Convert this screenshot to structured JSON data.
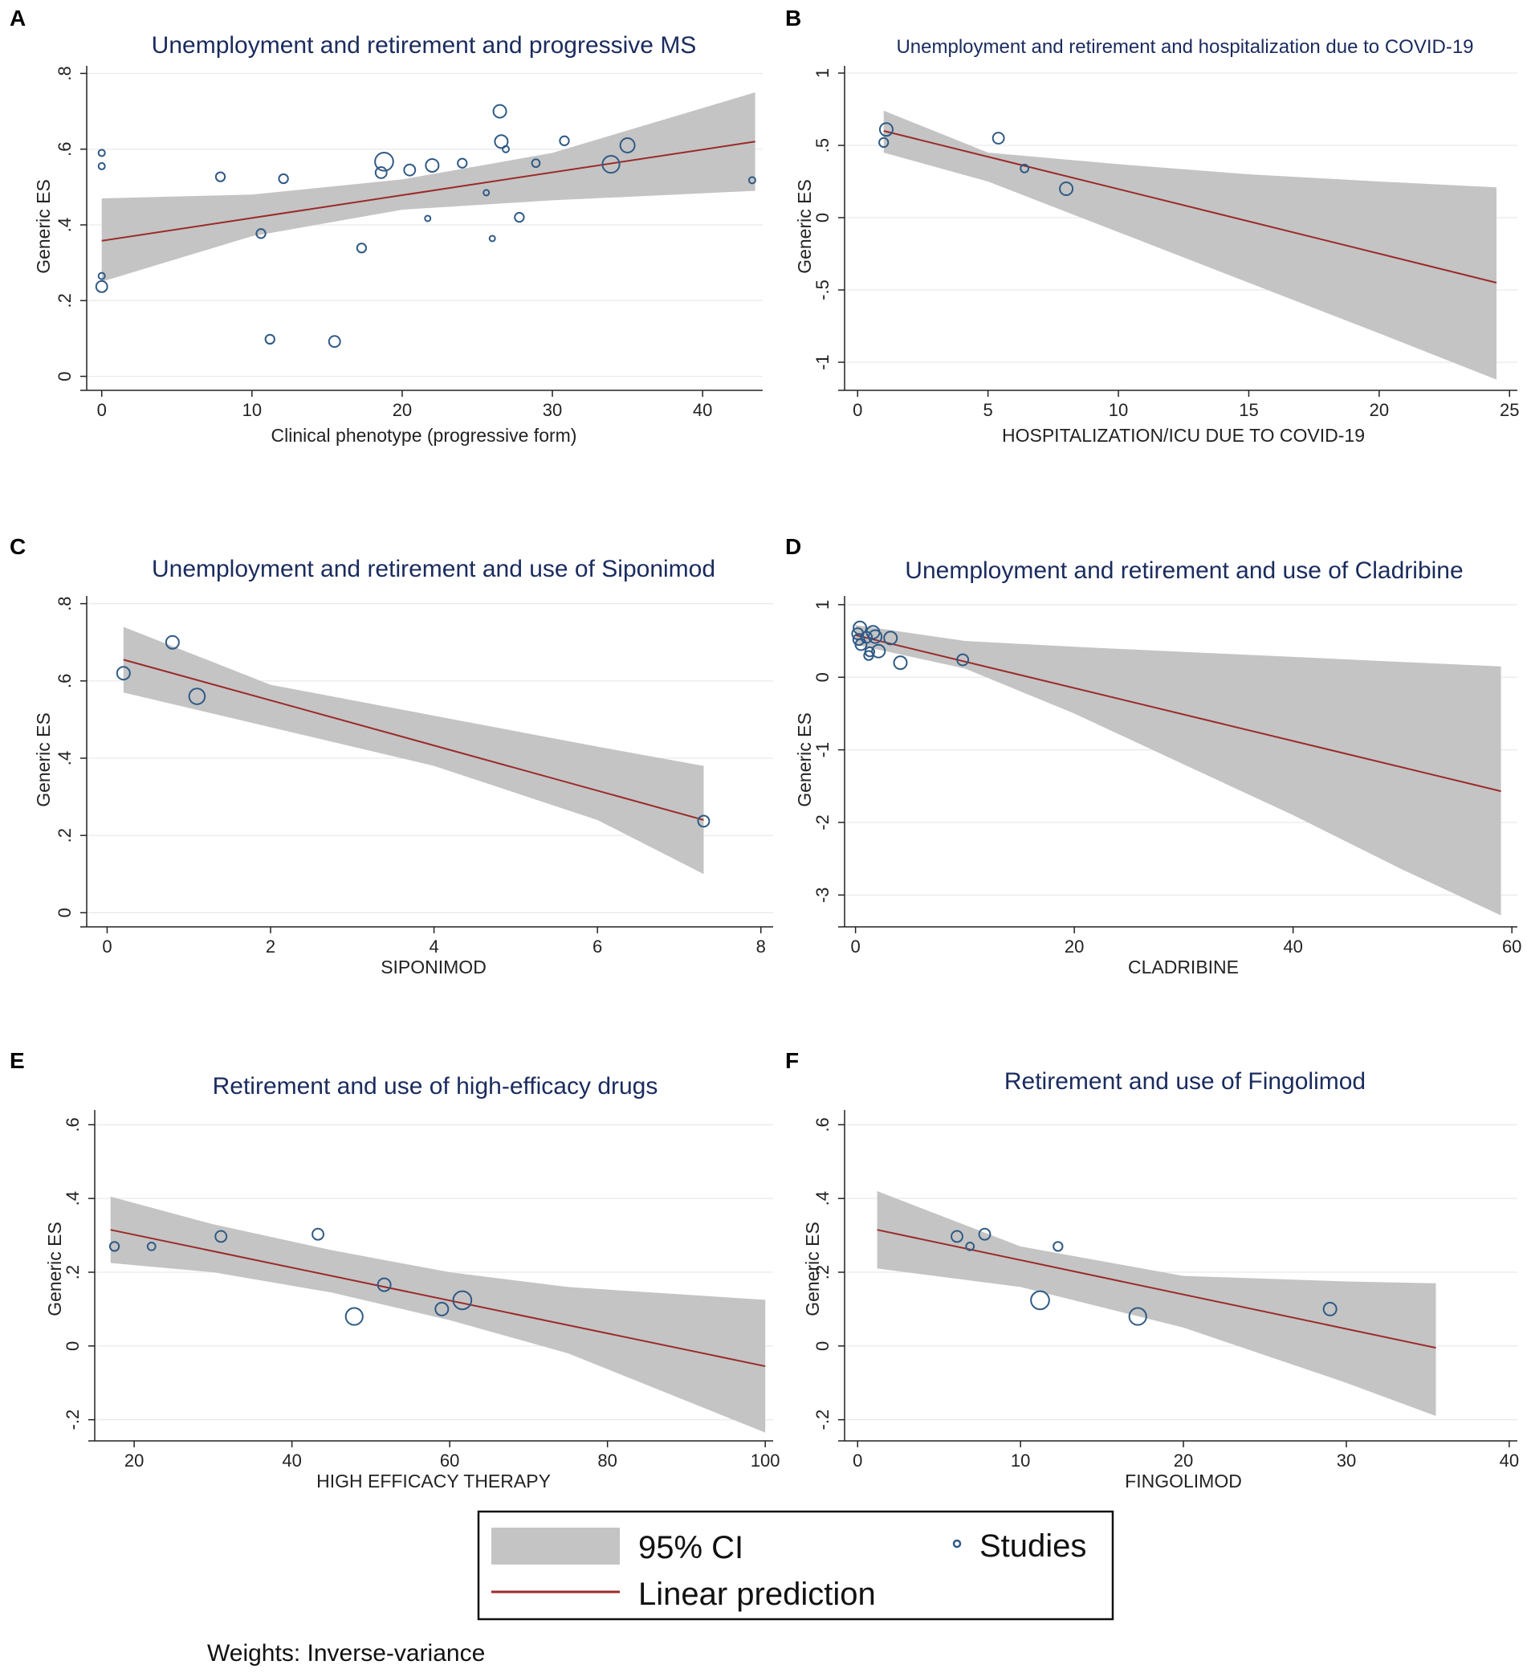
{
  "chart_data": [
    {
      "panel": "A",
      "type": "scatter",
      "title": "Unemployment and retirement and progressive MS",
      "xlabel": "Clinical phenotype (progressive form)",
      "ylabel": "Generic ES",
      "xlim": [
        -1,
        44
      ],
      "ylim": [
        -0.02,
        0.82
      ],
      "xticks": [
        0,
        10,
        20,
        30,
        40
      ],
      "xtick_labels": [
        "0",
        "10",
        "20",
        "30",
        "40"
      ],
      "yticks": [
        0,
        0.2,
        0.4,
        0.6,
        0.8
      ],
      "ytick_labels": [
        "0",
        ".2",
        ".4",
        ".6",
        ".8"
      ],
      "points": [
        {
          "x": 0,
          "y": 0.59,
          "w": 1
        },
        {
          "x": 0,
          "y": 0.555,
          "w": 1
        },
        {
          "x": 0,
          "y": 0.265,
          "w": 1
        },
        {
          "x": 0,
          "y": 0.237,
          "w": 3
        },
        {
          "x": 7.9,
          "y": 0.527,
          "w": 2
        },
        {
          "x": 10.6,
          "y": 0.377,
          "w": 2
        },
        {
          "x": 11.2,
          "y": 0.098,
          "w": 2
        },
        {
          "x": 12.1,
          "y": 0.522,
          "w": 2
        },
        {
          "x": 15.5,
          "y": 0.092,
          "w": 3
        },
        {
          "x": 17.3,
          "y": 0.339,
          "w": 2
        },
        {
          "x": 18.6,
          "y": 0.538,
          "w": 3
        },
        {
          "x": 18.8,
          "y": 0.567,
          "w": 8
        },
        {
          "x": 20.5,
          "y": 0.545,
          "w": 3
        },
        {
          "x": 21.7,
          "y": 0.417,
          "w": 0.6
        },
        {
          "x": 22,
          "y": 0.557,
          "w": 4
        },
        {
          "x": 24,
          "y": 0.563,
          "w": 2
        },
        {
          "x": 25.6,
          "y": 0.485,
          "w": 0.6
        },
        {
          "x": 26,
          "y": 0.364,
          "w": 0.6
        },
        {
          "x": 26.5,
          "y": 0.7,
          "w": 4
        },
        {
          "x": 26.6,
          "y": 0.62,
          "w": 4
        },
        {
          "x": 26.9,
          "y": 0.6,
          "w": 1
        },
        {
          "x": 27.8,
          "y": 0.42,
          "w": 2
        },
        {
          "x": 28.9,
          "y": 0.563,
          "w": 1.5
        },
        {
          "x": 30.8,
          "y": 0.622,
          "w": 2
        },
        {
          "x": 33.9,
          "y": 0.56,
          "w": 7
        },
        {
          "x": 35,
          "y": 0.61,
          "w": 5
        },
        {
          "x": 43.3,
          "y": 0.518,
          "w": 1
        }
      ],
      "fit": {
        "x0": 0,
        "y0": 0.358,
        "x1": 43.5,
        "y1": 0.62
      },
      "ci_x": [
        0,
        10,
        20,
        30,
        43.5
      ],
      "ci_lower": [
        0.25,
        0.37,
        0.44,
        0.465,
        0.49
      ],
      "ci_upper": [
        0.47,
        0.48,
        0.52,
        0.59,
        0.75
      ]
    },
    {
      "panel": "B",
      "type": "scatter",
      "title": "Unemployment and retirement and hospitalization due to COVID-19",
      "xlabel": "HOSPITALIZATION/ICU DUE TO COVID-19",
      "ylabel": "Generic ES",
      "xlim": [
        -0.5,
        25.3
      ],
      "ylim": [
        -1.15,
        1.05
      ],
      "xticks": [
        0,
        5,
        10,
        15,
        20,
        25
      ],
      "xtick_labels": [
        "0",
        "5",
        "10",
        "15",
        "20",
        "25"
      ],
      "yticks": [
        -1,
        -0.5,
        0,
        0.5,
        1
      ],
      "ytick_labels": [
        "-1",
        "-.5",
        "0",
        ".5",
        "1"
      ],
      "points": [
        {
          "x": 1.0,
          "y": 0.52,
          "w": 2
        },
        {
          "x": 1.1,
          "y": 0.61,
          "w": 4
        },
        {
          "x": 5.4,
          "y": 0.55,
          "w": 3
        },
        {
          "x": 6.4,
          "y": 0.34,
          "w": 1.5
        },
        {
          "x": 8.0,
          "y": 0.2,
          "w": 4
        }
      ],
      "fit": {
        "x0": 1.0,
        "y0": 0.6,
        "x1": 24.5,
        "y1": -0.45
      },
      "ci_x": [
        1.0,
        5,
        10,
        15,
        20,
        24.5
      ],
      "ci_lower": [
        0.45,
        0.25,
        -0.1,
        -0.45,
        -0.8,
        -1.12
      ],
      "ci_upper": [
        0.74,
        0.45,
        0.37,
        0.3,
        0.25,
        0.21
      ]
    },
    {
      "panel": "C",
      "type": "scatter",
      "title": "Unemployment and retirement and use of Siponimod",
      "xlabel": "SIPONIMOD",
      "ylabel": "Generic ES",
      "xlim": [
        -0.25,
        8.15
      ],
      "ylim": [
        -0.02,
        0.82
      ],
      "xticks": [
        0,
        2,
        4,
        6,
        8
      ],
      "xtick_labels": [
        "0",
        "2",
        "4",
        "6",
        "8"
      ],
      "yticks": [
        0,
        0.2,
        0.4,
        0.6,
        0.8
      ],
      "ytick_labels": [
        "0",
        ".2",
        ".4",
        ".6",
        ".8"
      ],
      "points": [
        {
          "x": 0.2,
          "y": 0.62,
          "w": 4
        },
        {
          "x": 0.8,
          "y": 0.7,
          "w": 4
        },
        {
          "x": 1.1,
          "y": 0.56,
          "w": 6
        },
        {
          "x": 7.3,
          "y": 0.237,
          "w": 3
        }
      ],
      "fit": {
        "x0": 0.2,
        "y0": 0.655,
        "x1": 7.3,
        "y1": 0.24
      },
      "ci_x": [
        0.2,
        2,
        4,
        6,
        7.3
      ],
      "ci_lower": [
        0.57,
        0.48,
        0.38,
        0.24,
        0.1
      ],
      "ci_upper": [
        0.74,
        0.59,
        0.51,
        0.43,
        0.38
      ]
    },
    {
      "panel": "D",
      "type": "scatter",
      "title": "Unemployment and retirement and use of Cladribine",
      "xlabel": "CLADRIBINE",
      "ylabel": "Generic ES",
      "xlim": [
        -1,
        60.5
      ],
      "ylim": [
        -3.35,
        1.12
      ],
      "xticks": [
        0,
        20,
        40,
        60
      ],
      "xtick_labels": [
        "0",
        "20",
        "40",
        "60"
      ],
      "yticks": [
        -3,
        -2,
        -1,
        0,
        1
      ],
      "ytick_labels": [
        "-3",
        "-2",
        "-1",
        "0",
        "1"
      ],
      "points": [
        {
          "x": 0.2,
          "y": 0.6,
          "w": 3
        },
        {
          "x": 0.4,
          "y": 0.68,
          "w": 4
        },
        {
          "x": 0.3,
          "y": 0.52,
          "w": 3
        },
        {
          "x": 0.5,
          "y": 0.45,
          "w": 3
        },
        {
          "x": 1.0,
          "y": 0.55,
          "w": 3
        },
        {
          "x": 1.2,
          "y": 0.3,
          "w": 2
        },
        {
          "x": 1.3,
          "y": 0.35,
          "w": 2
        },
        {
          "x": 1.6,
          "y": 0.62,
          "w": 4
        },
        {
          "x": 1.8,
          "y": 0.56,
          "w": 4
        },
        {
          "x": 2.1,
          "y": 0.36,
          "w": 4
        },
        {
          "x": 3.2,
          "y": 0.54,
          "w": 4
        },
        {
          "x": 4.1,
          "y": 0.2,
          "w": 4
        },
        {
          "x": 9.8,
          "y": 0.24,
          "w": 3
        }
      ],
      "fit": {
        "x0": 0,
        "y0": 0.58,
        "x1": 59,
        "y1": -1.57
      },
      "ci_x": [
        0,
        10,
        20,
        30,
        40,
        50,
        59
      ],
      "ci_lower": [
        0.45,
        0.12,
        -0.5,
        -1.2,
        -1.9,
        -2.65,
        -3.28
      ],
      "ci_upper": [
        0.72,
        0.5,
        0.42,
        0.35,
        0.28,
        0.21,
        0.15
      ]
    },
    {
      "panel": "E",
      "type": "scatter",
      "title": "Retirement and use of high-efficacy drugs",
      "xlabel": "HIGH EFFICACY THERAPY",
      "ylabel": "Generic ES",
      "xlim": [
        15,
        101
      ],
      "ylim": [
        -0.24,
        0.64
      ],
      "xticks": [
        20,
        40,
        60,
        80,
        100
      ],
      "xtick_labels": [
        "20",
        "40",
        "60",
        "80",
        "100"
      ],
      "yticks": [
        -0.2,
        0,
        0.2,
        0.4,
        0.6
      ],
      "ytick_labels": [
        "-.2",
        "0",
        ".2",
        ".4",
        ".6"
      ],
      "points": [
        {
          "x": 17.5,
          "y": 0.27,
          "w": 2
        },
        {
          "x": 22.2,
          "y": 0.27,
          "w": 1.5
        },
        {
          "x": 31,
          "y": 0.297,
          "w": 3
        },
        {
          "x": 43.3,
          "y": 0.303,
          "w": 3
        },
        {
          "x": 47.9,
          "y": 0.08,
          "w": 7
        },
        {
          "x": 51.7,
          "y": 0.166,
          "w": 4
        },
        {
          "x": 59,
          "y": 0.1,
          "w": 4
        },
        {
          "x": 61.6,
          "y": 0.124,
          "w": 8
        }
      ],
      "fit": {
        "x0": 17,
        "y0": 0.315,
        "x1": 100,
        "y1": -0.055
      },
      "ci_x": [
        17,
        30,
        45,
        60,
        75,
        100
      ],
      "ci_lower": [
        0.225,
        0.2,
        0.145,
        0.07,
        -0.02,
        -0.235
      ],
      "ci_upper": [
        0.405,
        0.33,
        0.26,
        0.2,
        0.16,
        0.125
      ]
    },
    {
      "panel": "F",
      "type": "scatter",
      "title": "Retirement and use of Fingolimod",
      "xlabel": "FINGOLIMOD",
      "ylabel": "Generic ES",
      "xlim": [
        -0.8,
        40.5
      ],
      "ylim": [
        -0.24,
        0.64
      ],
      "xticks": [
        0,
        10,
        20,
        30,
        40
      ],
      "xtick_labels": [
        "0",
        "10",
        "20",
        "30",
        "40"
      ],
      "yticks": [
        -0.2,
        0,
        0.2,
        0.4,
        0.6
      ],
      "ytick_labels": [
        "-.2",
        "0",
        ".2",
        ".4",
        ".6"
      ],
      "points": [
        {
          "x": 6.1,
          "y": 0.297,
          "w": 3
        },
        {
          "x": 6.9,
          "y": 0.27,
          "w": 1.5
        },
        {
          "x": 7.8,
          "y": 0.303,
          "w": 3
        },
        {
          "x": 11.2,
          "y": 0.124,
          "w": 8
        },
        {
          "x": 12.3,
          "y": 0.27,
          "w": 2
        },
        {
          "x": 17.2,
          "y": 0.08,
          "w": 7
        },
        {
          "x": 29,
          "y": 0.1,
          "w": 4
        }
      ],
      "fit": {
        "x0": 1.2,
        "y0": 0.315,
        "x1": 35.5,
        "y1": -0.005
      },
      "ci_x": [
        1.2,
        10,
        20,
        30,
        35.5
      ],
      "ci_lower": [
        0.21,
        0.16,
        0.05,
        -0.1,
        -0.19
      ],
      "ci_upper": [
        0.42,
        0.27,
        0.19,
        0.175,
        0.17
      ]
    }
  ],
  "legend": {
    "ci_label": "95% CI",
    "studies_label": "Studies",
    "fit_label": "Linear prediction"
  },
  "note": "Weights: Inverse-variance",
  "colors": {
    "ci_fill": "#c4c4c4",
    "fit_line": "#9b2a2a",
    "marker": "#2f5a85",
    "title": "#1a2b5e",
    "grid": "#e9e9e9"
  }
}
